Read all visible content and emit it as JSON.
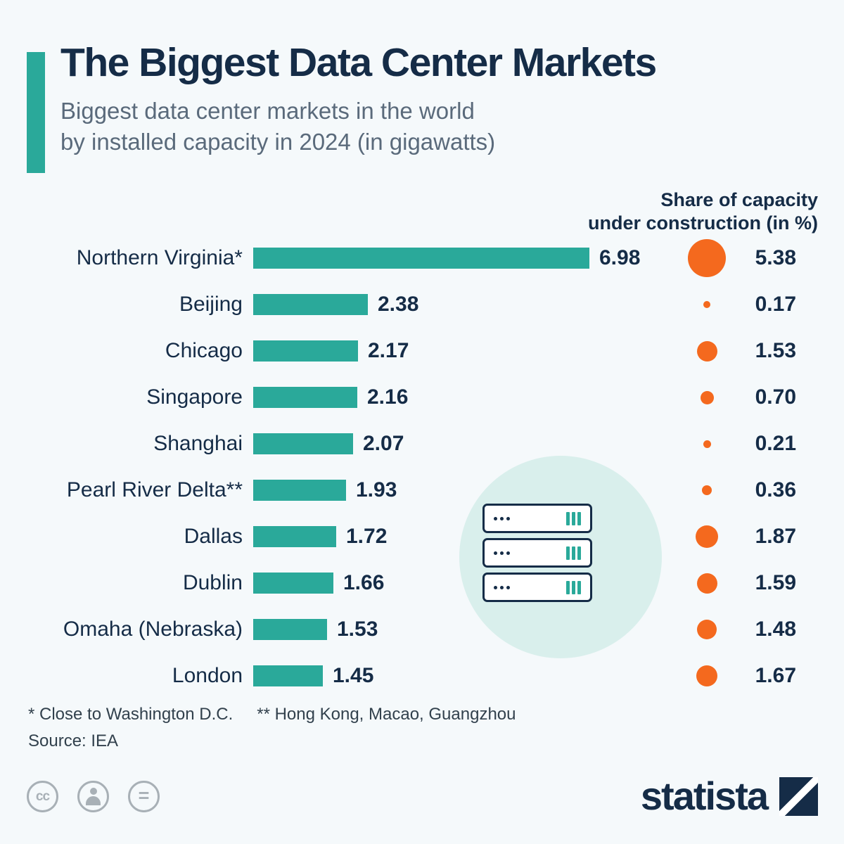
{
  "colors": {
    "navy": "#152c47",
    "teal": "#2aa99a",
    "orange": "#f4691e",
    "light_circle": "#d9efec",
    "background": "#f5f9fb"
  },
  "header": {
    "title": "The Biggest Data Center Markets",
    "subtitle_line1": "Biggest data center markets in the world",
    "subtitle_line2": "by installed capacity in 2024 (in gigawatts)"
  },
  "column_header": {
    "line1": "Share of capacity",
    "line2": "under construction (in %)"
  },
  "rows": [
    {
      "label": "Northern Virginia*",
      "gw": "6.98",
      "gw_num": 6.98,
      "share": "5.38",
      "share_num": 5.38
    },
    {
      "label": "Beijing",
      "gw": "2.38",
      "gw_num": 2.38,
      "share": "0.17",
      "share_num": 0.17
    },
    {
      "label": "Chicago",
      "gw": "2.17",
      "gw_num": 2.17,
      "share": "1.53",
      "share_num": 1.53
    },
    {
      "label": "Singapore",
      "gw": "2.16",
      "gw_num": 2.16,
      "share": "0.70",
      "share_num": 0.7
    },
    {
      "label": "Shanghai",
      "gw": "2.07",
      "gw_num": 2.07,
      "share": "0.21",
      "share_num": 0.21
    },
    {
      "label": "Pearl River Delta**",
      "gw": "1.93",
      "gw_num": 1.93,
      "share": "0.36",
      "share_num": 0.36
    },
    {
      "label": "Dallas",
      "gw": "1.72",
      "gw_num": 1.72,
      "share": "1.87",
      "share_num": 1.87
    },
    {
      "label": "Dublin",
      "gw": "1.66",
      "gw_num": 1.66,
      "share": "1.59",
      "share_num": 1.59
    },
    {
      "label": "Omaha (Nebraska)",
      "gw": "1.53",
      "gw_num": 1.53,
      "share": "1.48",
      "share_num": 1.48
    },
    {
      "label": "London",
      "gw": "1.45",
      "gw_num": 1.45,
      "share": "1.67",
      "share_num": 1.67
    }
  ],
  "chart_data": {
    "type": "bar",
    "title": "The Biggest Data Center Markets",
    "subtitle": "Biggest data center markets in the world by installed capacity in 2024 (in gigawatts)",
    "categories": [
      "Northern Virginia*",
      "Beijing",
      "Chicago",
      "Singapore",
      "Shanghai",
      "Pearl River Delta**",
      "Dallas",
      "Dublin",
      "Omaha (Nebraska)",
      "London"
    ],
    "series": [
      {
        "name": "Installed capacity in 2024 (in gigawatts)",
        "values": [
          6.98,
          2.38,
          2.17,
          2.16,
          2.07,
          1.93,
          1.72,
          1.66,
          1.53,
          1.45
        ]
      },
      {
        "name": "Share of capacity under construction (in %)",
        "values": [
          5.38,
          0.17,
          1.53,
          0.7,
          0.21,
          0.36,
          1.87,
          1.59,
          1.48,
          1.67
        ]
      }
    ],
    "orientation": "horizontal",
    "bar_color": "#2aa99a",
    "dot_color": "#f4691e",
    "xlim": [
      0,
      7.3
    ],
    "grid": false,
    "legend_position": "none"
  },
  "footnotes": {
    "note1": "* Close to Washington D.C.",
    "note2": "** Hong Kong, Macao, Guangzhou",
    "source": "Source: IEA"
  },
  "license": {
    "cc_glyph": "cc",
    "nd_glyph": "="
  },
  "footer": {
    "brand": "statista"
  }
}
